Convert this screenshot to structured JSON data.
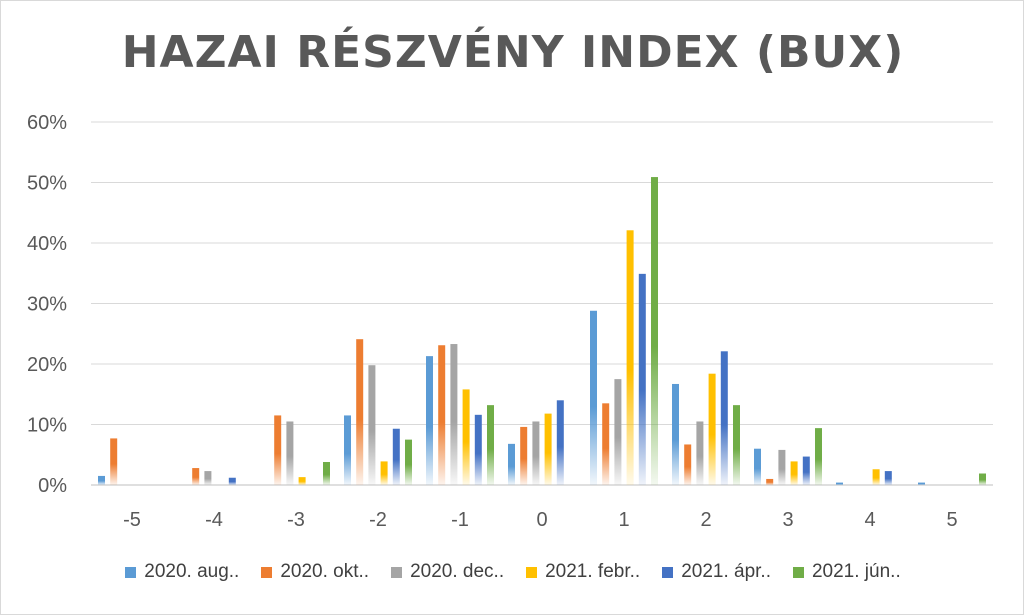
{
  "chart_data": {
    "type": "bar",
    "title": "HAZAI RÉSZVÉNY INDEX (BUX)",
    "xlabel": "",
    "ylabel": "",
    "categories": [
      "-5",
      "-4",
      "-3",
      "-2",
      "-1",
      "0",
      "1",
      "2",
      "3",
      "4",
      "5"
    ],
    "ylim": [
      0,
      60
    ],
    "yticks": [
      "0%",
      "10%",
      "20%",
      "30%",
      "40%",
      "50%",
      "60%"
    ],
    "grid": true,
    "legend_position": "bottom",
    "series": [
      {
        "name": "2020. aug..",
        "color": "#5b9bd5",
        "values": [
          1.5,
          0,
          0,
          11.5,
          21.3,
          6.8,
          28.8,
          16.7,
          6.0,
          0.4,
          0.4
        ]
      },
      {
        "name": "2020. okt..",
        "color": "#ed7d31",
        "values": [
          7.7,
          2.8,
          11.5,
          24.1,
          23.1,
          9.6,
          13.5,
          6.7,
          1.0,
          0,
          0
        ]
      },
      {
        "name": "2020. dec..",
        "color": "#a5a5a5",
        "values": [
          0,
          2.3,
          10.5,
          19.8,
          23.3,
          10.5,
          17.5,
          10.5,
          5.8,
          0,
          0
        ]
      },
      {
        "name": "2021. febr..",
        "color": "#ffc000",
        "values": [
          0,
          0,
          1.3,
          3.9,
          15.8,
          11.8,
          42.1,
          18.4,
          3.9,
          2.6,
          0
        ]
      },
      {
        "name": "2021. ápr..",
        "color": "#4472c4",
        "values": [
          0,
          1.2,
          0,
          9.3,
          11.6,
          14.0,
          34.9,
          22.1,
          4.7,
          2.3,
          0
        ]
      },
      {
        "name": "2021. jún..",
        "color": "#70ad47",
        "values": [
          0,
          0,
          3.8,
          7.5,
          13.2,
          0,
          50.9,
          13.2,
          9.4,
          0,
          1.9
        ]
      }
    ]
  }
}
